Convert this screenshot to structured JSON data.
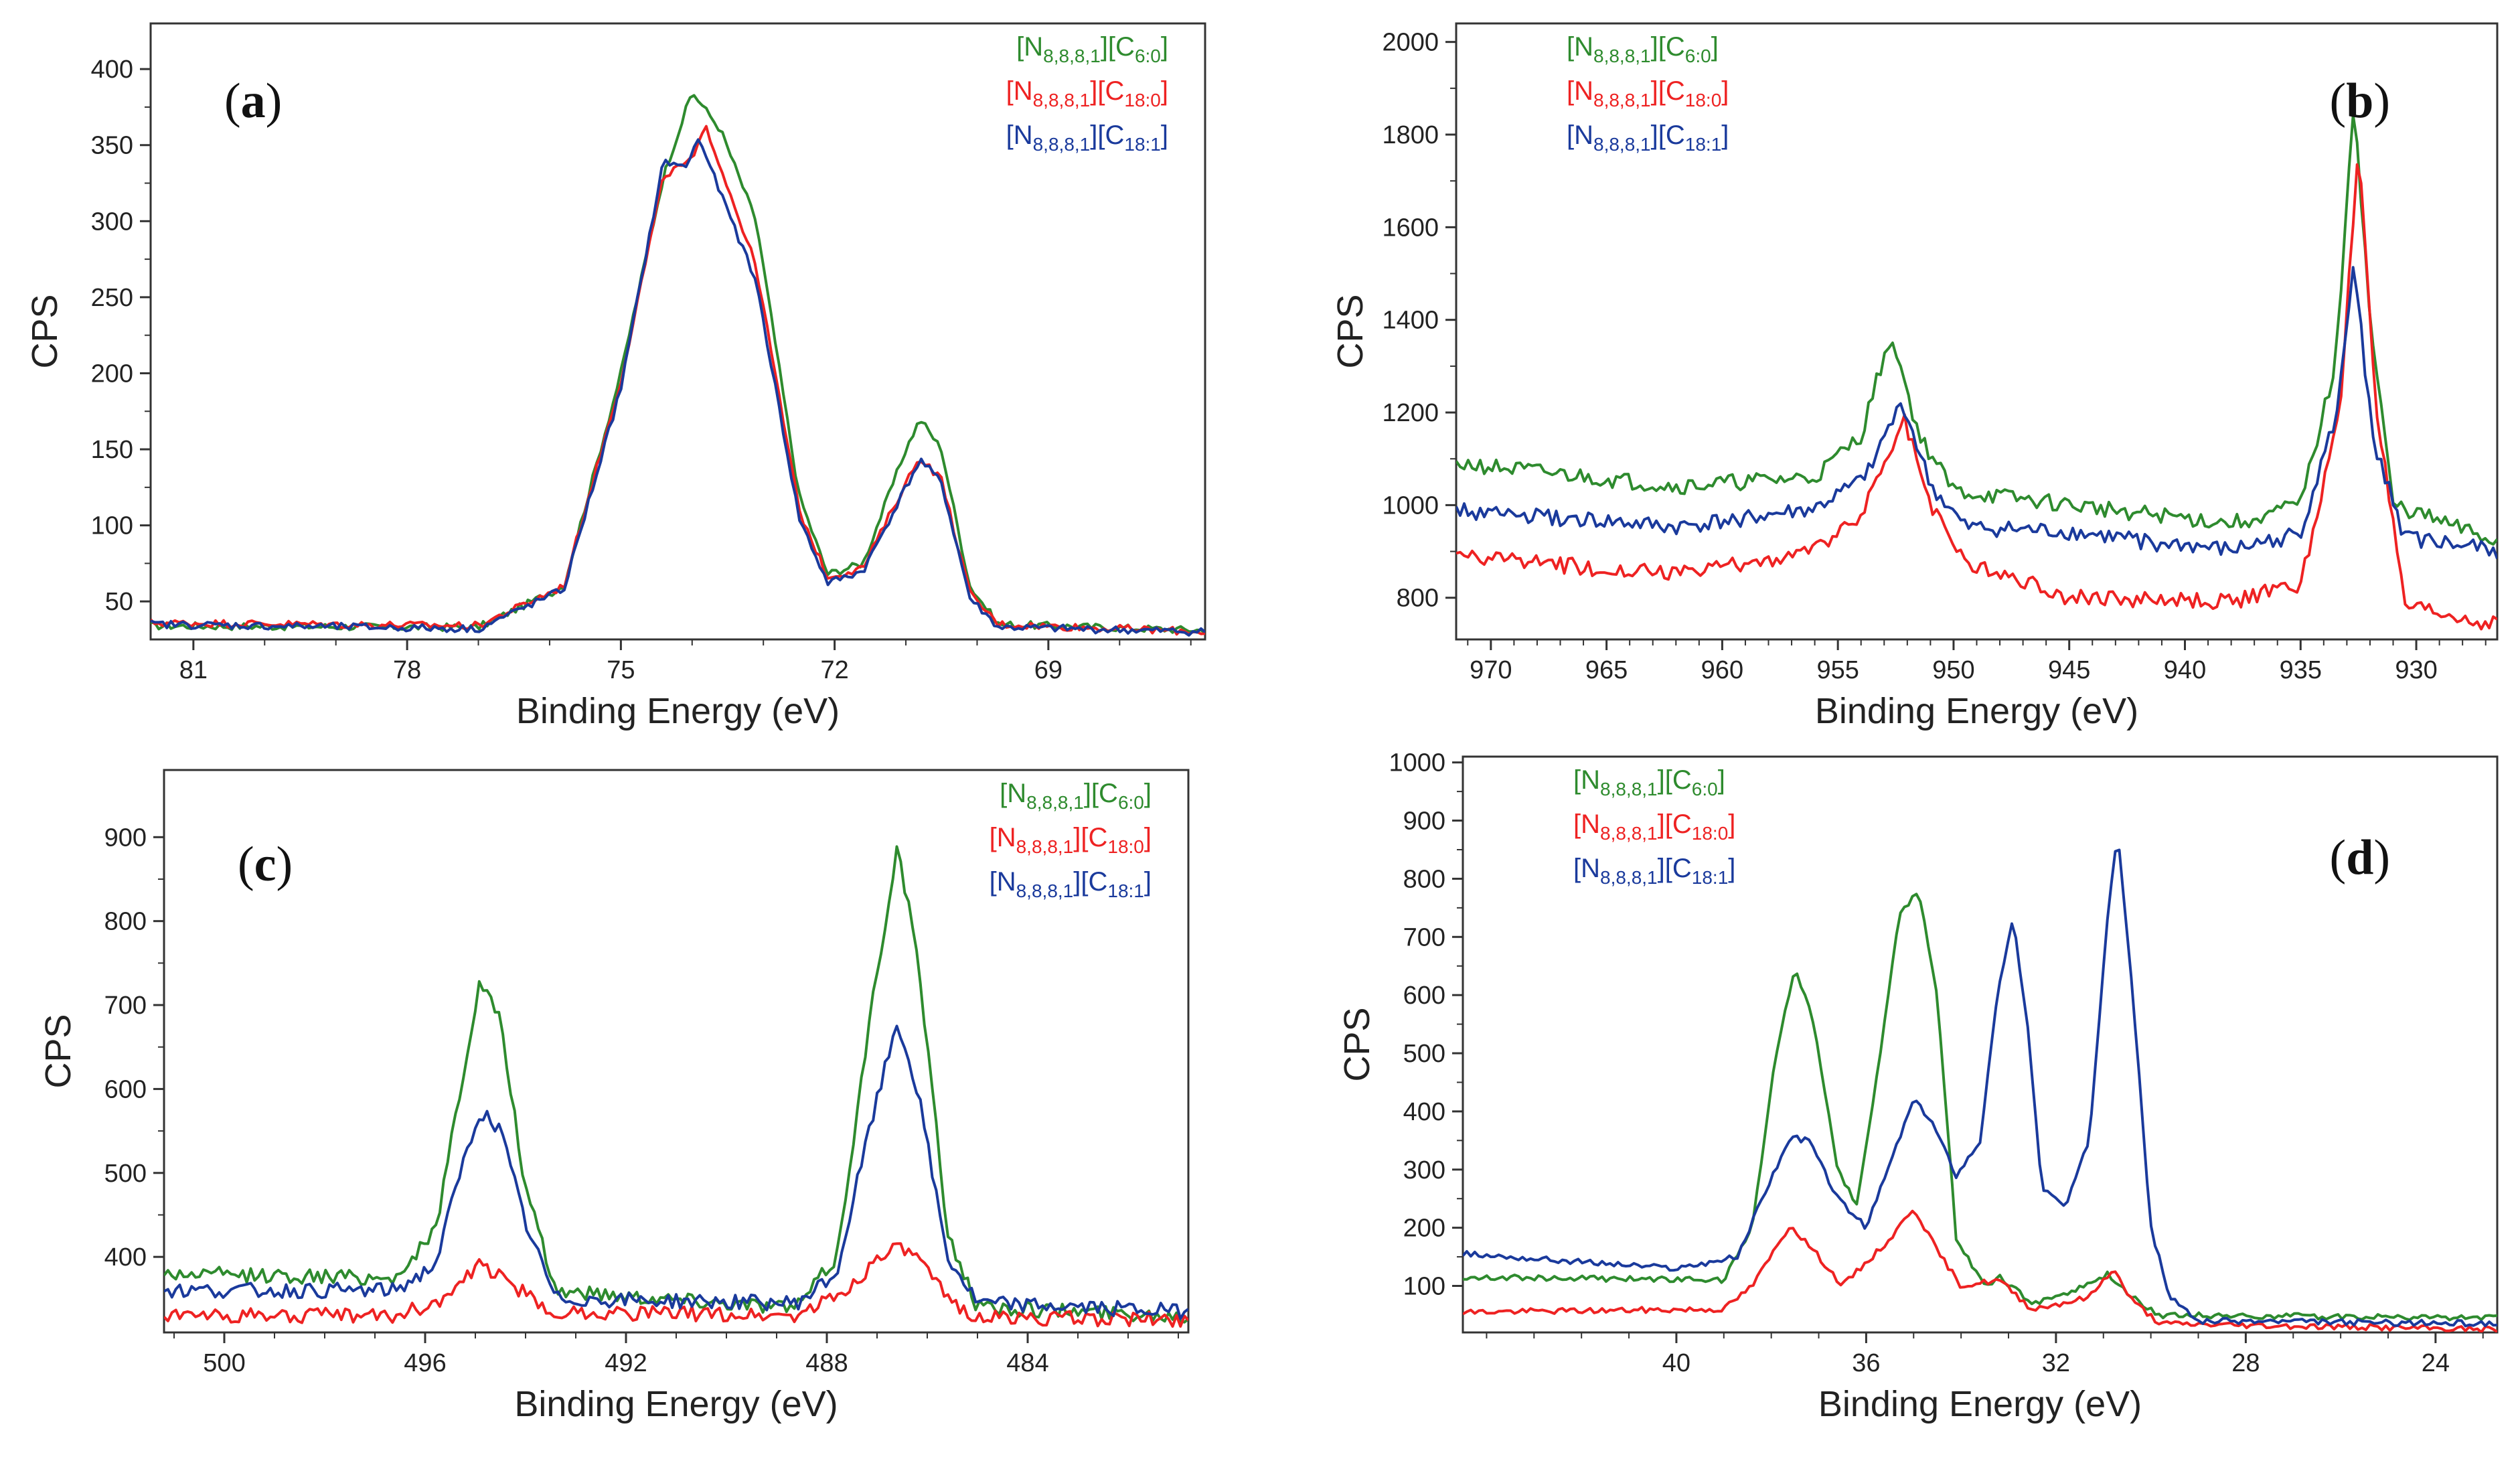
{
  "figure": {
    "colors": {
      "green": "#2e8b2e",
      "red": "#ee2222",
      "blue": "#1a3a9c"
    },
    "legend_entries": [
      {
        "series": "C6:0",
        "prefix": "[N",
        "cation_sub": "8,8,8,1",
        "mid": "][C",
        "anion_sub": "6:0",
        "suffix": "]",
        "color": "#2e8b2e"
      },
      {
        "series": "C18:0",
        "prefix": "[N",
        "cation_sub": "8,8,8,1",
        "mid": "][C",
        "anion_sub": "18:0",
        "suffix": "]",
        "color": "#ee2222"
      },
      {
        "series": "C18:1",
        "prefix": "[N",
        "cation_sub": "8,8,8,1",
        "mid": "][C",
        "anion_sub": "18:1",
        "suffix": "]",
        "color": "#1a3a9c"
      }
    ]
  },
  "chart_data": [
    {
      "id": "a",
      "panel_label": {
        "open": "(",
        "letter": "a",
        "close": ")"
      },
      "type": "line",
      "xlabel": "Binding Energy (eV)",
      "ylabel": "CPS",
      "xlim": [
        81.6,
        66.8
      ],
      "ylim": [
        25,
        430
      ],
      "xticks": [
        "81",
        "78",
        "75",
        "72",
        "69"
      ],
      "yticks": [
        "50",
        "100",
        "150",
        "200",
        "250",
        "300",
        "350",
        "400"
      ],
      "legend_position": "top-right",
      "label_position": "top-left",
      "noise": 2.5,
      "series": [
        {
          "name": "[N8,8,8,1][C6:0]",
          "color": "#2e8b2e",
          "points": [
            [
              81.6,
              34
            ],
            [
              77,
              33
            ],
            [
              75.8,
              60
            ],
            [
              75,
              200
            ],
            [
              74.4,
              330
            ],
            [
              74,
              385
            ],
            [
              73.6,
              360
            ],
            [
              73.1,
              300
            ],
            [
              72.5,
              120
            ],
            [
              72.1,
              68
            ],
            [
              71.6,
              75
            ],
            [
              71,
              150
            ],
            [
              70.8,
              170
            ],
            [
              70.5,
              150
            ],
            [
              70.1,
              60
            ],
            [
              69.7,
              35
            ],
            [
              66.8,
              31
            ]
          ]
        },
        {
          "name": "[N8,8,8,1][C18:0]",
          "color": "#ee2222",
          "points": [
            [
              81.6,
              36
            ],
            [
              77,
              34
            ],
            [
              75.8,
              60
            ],
            [
              75,
              195
            ],
            [
              74.4,
              330
            ],
            [
              74,
              340
            ],
            [
              73.8,
              362
            ],
            [
              73.1,
              270
            ],
            [
              72.5,
              110
            ],
            [
              72.1,
              66
            ],
            [
              71.6,
              72
            ],
            [
              71,
              128
            ],
            [
              70.8,
              145
            ],
            [
              70.5,
              130
            ],
            [
              70.1,
              55
            ],
            [
              69.7,
              35
            ],
            [
              66.8,
              30
            ]
          ]
        },
        {
          "name": "[N8,8,8,1][C18:1]",
          "color": "#1a3a9c",
          "points": [
            [
              81.6,
              35
            ],
            [
              77,
              32
            ],
            [
              75.8,
              58
            ],
            [
              75,
              190
            ],
            [
              74.4,
              340
            ],
            [
              74.1,
              335
            ],
            [
              73.9,
              355
            ],
            [
              73.7,
              330
            ],
            [
              73.1,
              260
            ],
            [
              72.5,
              105
            ],
            [
              72.1,
              62
            ],
            [
              71.6,
              70
            ],
            [
              71,
              125
            ],
            [
              70.8,
              143
            ],
            [
              70.5,
              128
            ],
            [
              70.1,
              52
            ],
            [
              69.7,
              33
            ],
            [
              66.8,
              30
            ]
          ]
        }
      ]
    },
    {
      "id": "b",
      "panel_label": {
        "open": "(",
        "letter": "b",
        "close": ")"
      },
      "type": "line",
      "xlabel": "Binding Energy (eV)",
      "ylabel": "CPS",
      "xlim": [
        971.5,
        926.5
      ],
      "ylim": [
        710,
        2040
      ],
      "xticks": [
        "970",
        "965",
        "960",
        "955",
        "950",
        "945",
        "940",
        "935",
        "930"
      ],
      "yticks": [
        "800",
        "1000",
        "1200",
        "1400",
        "1600",
        "1800",
        "2000"
      ],
      "legend_position": "top-left",
      "label_position": "top-right",
      "noise": 18,
      "series": [
        {
          "name": "[N8,8,8,1][C6:0]",
          "color": "#2e8b2e",
          "points": [
            [
              971.5,
              1090
            ],
            [
              962,
              1040
            ],
            [
              956,
              1060
            ],
            [
              954,
              1150
            ],
            [
              952.7,
              1375
            ],
            [
              951.5,
              1150
            ],
            [
              950,
              1030
            ],
            [
              945,
              1000
            ],
            [
              938,
              960
            ],
            [
              935,
              1000
            ],
            [
              933.5,
              1300
            ],
            [
              932.7,
              1880
            ],
            [
              932,
              1400
            ],
            [
              931,
              1000
            ],
            [
              926.5,
              920
            ]
          ]
        },
        {
          "name": "[N8,8,8,1][C18:0]",
          "color": "#ee2222",
          "points": [
            [
              971.5,
              890
            ],
            [
              962,
              850
            ],
            [
              956,
              900
            ],
            [
              954,
              980
            ],
            [
              952.1,
              1185
            ],
            [
              951,
              1000
            ],
            [
              949.5,
              880
            ],
            [
              945,
              800
            ],
            [
              938,
              790
            ],
            [
              935,
              830
            ],
            [
              933.3,
              1200
            ],
            [
              932.5,
              1780
            ],
            [
              931.7,
              1200
            ],
            [
              930.5,
              780
            ],
            [
              926.5,
              740
            ]
          ]
        },
        {
          "name": "[N8,8,8,1][C18:1]",
          "color": "#1a3a9c",
          "points": [
            [
              971.5,
              990
            ],
            [
              962,
              950
            ],
            [
              956,
              990
            ],
            [
              954,
              1050
            ],
            [
              952.2,
              1220
            ],
            [
              951,
              1040
            ],
            [
              949.5,
              950
            ],
            [
              945,
              940
            ],
            [
              938,
              900
            ],
            [
              935,
              940
            ],
            [
              933.4,
              1200
            ],
            [
              932.7,
              1530
            ],
            [
              931.9,
              1150
            ],
            [
              930.5,
              930
            ],
            [
              926.5,
              900
            ]
          ]
        }
      ]
    },
    {
      "id": "c",
      "panel_label": {
        "open": "(",
        "letter": "c",
        "close": ")"
      },
      "type": "line",
      "xlabel": "Binding Energy (eV)",
      "ylabel": "CPS",
      "xlim": [
        501.2,
        480.8
      ],
      "ylim": [
        310,
        980
      ],
      "xticks": [
        "500",
        "496",
        "492",
        "488",
        "484"
      ],
      "yticks": [
        "400",
        "500",
        "600",
        "700",
        "800",
        "900"
      ],
      "legend_position": "top-right",
      "label_position": "top-left",
      "noise": 9,
      "series": [
        {
          "name": "[N8,8,8,1][C6:0]",
          "color": "#2e8b2e",
          "points": [
            [
              501.2,
              380
            ],
            [
              496.6,
              375
            ],
            [
              495.8,
              430
            ],
            [
              495.3,
              600
            ],
            [
              494.9,
              730
            ],
            [
              494.5,
              680
            ],
            [
              494,
              480
            ],
            [
              493.4,
              360
            ],
            [
              488.6,
              340
            ],
            [
              487.8,
              400
            ],
            [
              487.1,
              700
            ],
            [
              486.6,
              890
            ],
            [
              486.2,
              760
            ],
            [
              485.6,
              430
            ],
            [
              485,
              340
            ],
            [
              480.8,
              330
            ]
          ]
        },
        {
          "name": "[N8,8,8,1][C18:0]",
          "color": "#ee2222",
          "points": [
            [
              501.2,
              330
            ],
            [
              496.6,
              330
            ],
            [
              495.6,
              350
            ],
            [
              494.9,
              390
            ],
            [
              494.3,
              370
            ],
            [
              493.6,
              335
            ],
            [
              488.6,
              330
            ],
            [
              487.6,
              360
            ],
            [
              486.8,
              410
            ],
            [
              486.3,
              405
            ],
            [
              485.6,
              350
            ],
            [
              485,
              328
            ],
            [
              480.8,
              325
            ]
          ]
        },
        {
          "name": "[N8,8,8,1][C18:1]",
          "color": "#1a3a9c",
          "points": [
            [
              501.2,
              360
            ],
            [
              496.6,
              360
            ],
            [
              495.8,
              390
            ],
            [
              495.3,
              500
            ],
            [
              494.9,
              575
            ],
            [
              494.5,
              550
            ],
            [
              494,
              440
            ],
            [
              493.4,
              350
            ],
            [
              488.6,
              345
            ],
            [
              487.8,
              380
            ],
            [
              487.2,
              540
            ],
            [
              486.6,
              680
            ],
            [
              486.2,
              600
            ],
            [
              485.6,
              400
            ],
            [
              485,
              345
            ],
            [
              480.8,
              335
            ]
          ]
        }
      ]
    },
    {
      "id": "d",
      "panel_label": {
        "open": "(",
        "letter": "d",
        "close": ")"
      },
      "type": "line",
      "xlabel": "Binding Energy (eV)",
      "ylabel": "CPS",
      "xlim": [
        44.5,
        22.7
      ],
      "ylim": [
        20,
        1010
      ],
      "xticks": [
        "40",
        "36",
        "32",
        "28",
        "24"
      ],
      "yticks": [
        "100",
        "200",
        "300",
        "400",
        "500",
        "600",
        "700",
        "800",
        "900",
        "1000"
      ],
      "legend_position": "top-left",
      "label_position": "top-right",
      "noise": 5,
      "series": [
        {
          "name": "[N8,8,8,1][C6:0]",
          "color": "#2e8b2e",
          "points": [
            [
              44.5,
              115
            ],
            [
              39,
              110
            ],
            [
              38.4,
              200
            ],
            [
              37.9,
              500
            ],
            [
              37.5,
              650
            ],
            [
              37.1,
              550
            ],
            [
              36.6,
              300
            ],
            [
              36.2,
              240
            ],
            [
              35.7,
              500
            ],
            [
              35.3,
              740
            ],
            [
              34.9,
              780
            ],
            [
              34.5,
              600
            ],
            [
              34.1,
              180
            ],
            [
              33.5,
              100
            ],
            [
              33.2,
              115
            ],
            [
              32.5,
              70
            ],
            [
              31.5,
              95
            ],
            [
              30.9,
              120
            ],
            [
              30.4,
              80
            ],
            [
              29.8,
              50
            ],
            [
              22.7,
              45
            ]
          ]
        },
        {
          "name": "[N8,8,8,1][C18:0]",
          "color": "#ee2222",
          "points": [
            [
              44.5,
              55
            ],
            [
              39,
              60
            ],
            [
              38.4,
              100
            ],
            [
              37.6,
              205
            ],
            [
              37.1,
              160
            ],
            [
              36.5,
              100
            ],
            [
              35.5,
              180
            ],
            [
              35,
              235
            ],
            [
              34.5,
              160
            ],
            [
              34,
              100
            ],
            [
              33.2,
              110
            ],
            [
              32.5,
              60
            ],
            [
              31.3,
              80
            ],
            [
              30.8,
              130
            ],
            [
              30.4,
              75
            ],
            [
              29.8,
              35
            ],
            [
              22.7,
              25
            ]
          ]
        },
        {
          "name": "[N8,8,8,1][C18:1]",
          "color": "#1a3a9c",
          "points": [
            [
              44.5,
              155
            ],
            [
              40,
              130
            ],
            [
              38.7,
              150
            ],
            [
              38.2,
              250
            ],
            [
              37.6,
              355
            ],
            [
              37.2,
              350
            ],
            [
              36.6,
              250
            ],
            [
              36,
              200
            ],
            [
              35.5,
              310
            ],
            [
              35,
              420
            ],
            [
              34.6,
              380
            ],
            [
              34.1,
              290
            ],
            [
              33.6,
              350
            ],
            [
              33.2,
              620
            ],
            [
              32.9,
              730
            ],
            [
              32.6,
              550
            ],
            [
              32.3,
              270
            ],
            [
              31.8,
              235
            ],
            [
              31.3,
              350
            ],
            [
              30.9,
              750
            ],
            [
              30.7,
              885
            ],
            [
              30.4,
              620
            ],
            [
              30,
              200
            ],
            [
              29.6,
              80
            ],
            [
              29,
              40
            ],
            [
              22.7,
              35
            ]
          ]
        }
      ]
    }
  ]
}
